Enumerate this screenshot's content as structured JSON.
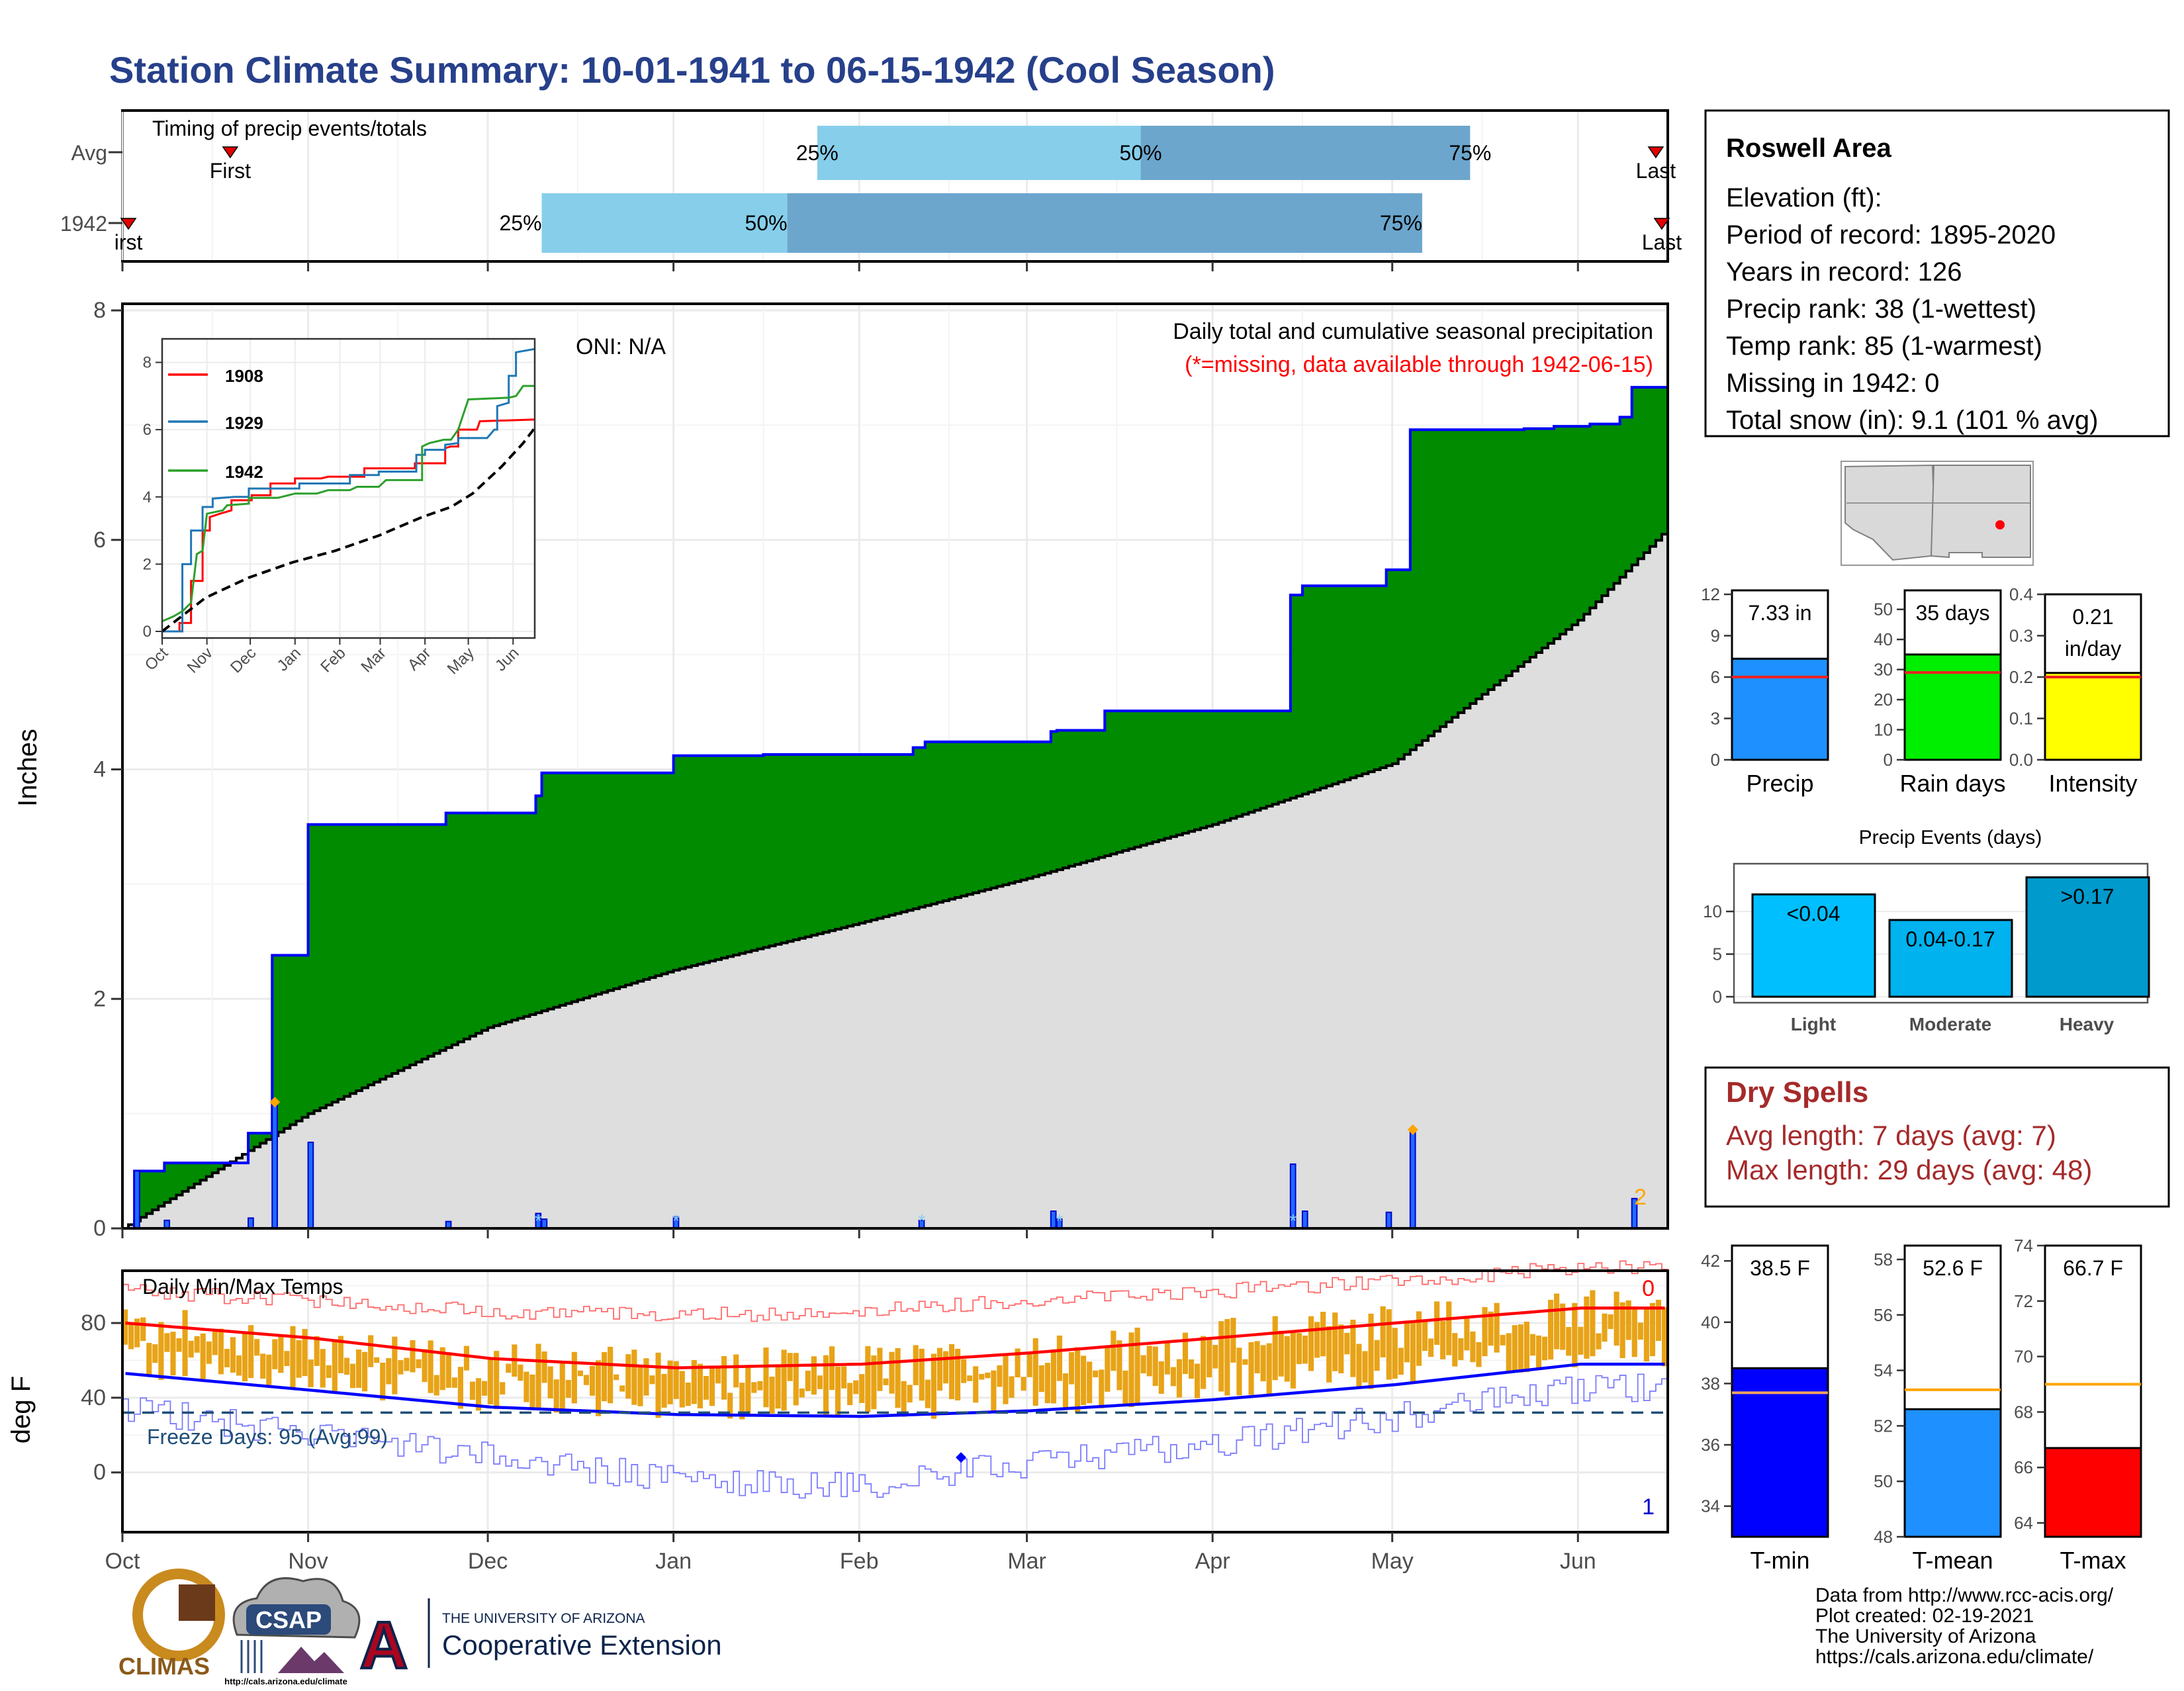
{
  "title": "Station Climate Summary: 10-01-1941 to 06-15-1942 (Cool Season)",
  "timing": {
    "label": "Timing of precip events/totals",
    "rows": [
      {
        "name": "Avg",
        "first_day": 18,
        "last_day": 256,
        "p25_day": 116,
        "p50_day": 170,
        "p75_day": 225,
        "first_label": "First",
        "last_label": "Last"
      },
      {
        "name": "1942",
        "first_day": 1,
        "last_day": 257,
        "p25_day": 70,
        "p50_day": 111,
        "p75_day": 217,
        "first_label": "irst",
        "last_label": "Last"
      }
    ],
    "pct_labels": [
      "25%",
      "50%",
      "75%"
    ]
  },
  "station": {
    "name": "Roswell Area",
    "lines": [
      "Elevation (ft):",
      "Period of record: 1895-2020",
      "Years in record: 126",
      "Precip rank: 38 (1-wettest)",
      "Temp rank: 85 (1-warmest)",
      "Missing in 1942: 0",
      "Total snow (in): 9.1 (101 % avg)"
    ]
  },
  "main_chart": {
    "ylabel": "Inches",
    "annotation_title": "Daily total and cumulative seasonal precipitation",
    "annotation_missing": "(*=missing, data available through 1942-06-15)",
    "oni": "ONI: N/A",
    "corner_count": "2",
    "months": [
      "Oct",
      "Nov",
      "Dec",
      "Jan",
      "Feb",
      "Mar",
      "Apr",
      "May",
      "Jun"
    ],
    "yticks": [
      "0",
      "2",
      "4",
      "6",
      "8"
    ]
  },
  "inset": {
    "yticks": [
      "0",
      "2",
      "4",
      "6",
      "8"
    ],
    "months": [
      "Oct",
      "Nov",
      "Dec",
      "Jan",
      "Feb",
      "Mar",
      "Apr",
      "May",
      "Jun"
    ],
    "legend": [
      "1908",
      "1929",
      "1942"
    ]
  },
  "temp_chart": {
    "title": "Daily Min/Max Temps",
    "ylabel": "deg F",
    "yticks": [
      "0",
      "40",
      "80"
    ],
    "freeze_label": "Freeze Days: 95 (Avg:99)",
    "count_top": "0",
    "count_bottom": "1"
  },
  "precip_bars": [
    {
      "label": "Precip",
      "value_label": "7.33 in",
      "yticks": [
        "0",
        "3",
        "6",
        "9",
        "12"
      ]
    },
    {
      "label": "Rain days",
      "value_label": "35 days",
      "yticks": [
        "0",
        "10",
        "20",
        "30",
        "40",
        "50"
      ]
    },
    {
      "label": "Intensity",
      "value_label": "0.21\nin/day",
      "yticks": [
        "0.0",
        "0.1",
        "0.2",
        "0.3",
        "0.4"
      ]
    }
  ],
  "events": {
    "title": "Precip Events (days)",
    "categories": [
      "Light",
      "Moderate",
      "Heavy"
    ],
    "bar_labels": [
      "<0.04",
      "0.04-0.17",
      ">0.17"
    ],
    "yticks": [
      "0",
      "5",
      "10"
    ]
  },
  "dry": {
    "title": "Dry Spells",
    "avg_line": "Avg length: 7 days (avg: 7)",
    "max_line": "Max length: 29 days (avg: 48)"
  },
  "temp_bars": [
    {
      "label": "T-min",
      "value_label": "38.5 F",
      "yticks": [
        "34",
        "36",
        "38",
        "40",
        "42"
      ]
    },
    {
      "label": "T-mean",
      "value_label": "52.6 F",
      "yticks": [
        "48",
        "50",
        "52",
        "54",
        "56",
        "58"
      ]
    },
    {
      "label": "T-max",
      "value_label": "66.7 F",
      "yticks": [
        "64",
        "66",
        "68",
        "70",
        "72",
        "74"
      ]
    }
  ],
  "credits": [
    "Data from http://www.rcc-acis.org/",
    "Plot created: 02-19-2021",
    "The University of Arizona",
    "https://cals.arizona.edu/climate/"
  ],
  "logos": {
    "climas": "CLIMAS",
    "csap": "CSAP",
    "csap_url": "http://cals.arizona.edu/climate",
    "ua_small": "THE UNIVERSITY OF ARIZONA",
    "ua_big": "Cooperative Extension",
    "ua_letter": "A"
  },
  "chart_data": [
    {
      "type": "area",
      "title": "Daily total and cumulative seasonal precipitation",
      "ylabel": "Inches",
      "ylim": [
        0,
        8
      ],
      "x_range": [
        "1941-10-01",
        "1942-06-15"
      ],
      "series": [
        {
          "name": "1942",
          "x": [
            "10-03",
            "10-08",
            "10-22",
            "10-26",
            "11-01",
            "11-24",
            "12-09",
            "12-10",
            "01-01",
            "01-16",
            "02-10",
            "02-12",
            "03-05",
            "03-06",
            "03-14",
            "03-25",
            "04-14",
            "04-16",
            "04-30",
            "05-04",
            "05-23",
            "05-28",
            "06-03",
            "06-08",
            "06-10",
            "06-15"
          ],
          "values": [
            0.5,
            0.57,
            0.83,
            2.38,
            3.52,
            3.62,
            3.77,
            3.97,
            4.12,
            4.13,
            4.19,
            4.24,
            4.33,
            4.34,
            4.51,
            4.51,
            5.52,
            5.6,
            5.74,
            6.96,
            6.97,
            6.99,
            7.01,
            7.07,
            7.33,
            7.33
          ]
        },
        {
          "name": "",
          "x": [
            "10-01",
            "11-01",
            "12-01",
            "01-01",
            "02-01",
            "03-01",
            "04-01",
            "05-01",
            "06-01",
            "06-15"
          ],
          "values": [
            0.0,
            1.0,
            1.75,
            2.25,
            2.66,
            3.05,
            3.52,
            4.05,
            5.3,
            6.05
          ]
        }
      ],
      "daily_precip": {
        "dates": [
          "10-03",
          "10-08",
          "10-22",
          "10-26",
          "11-01",
          "11-24",
          "12-09",
          "12-10",
          "01-01",
          "02-11",
          "03-05",
          "03-06",
          "04-14",
          "04-16",
          "04-30",
          "05-04",
          "06-10"
        ],
        "values": [
          0.5,
          0.07,
          0.09,
          1.1,
          0.75,
          0.06,
          0.13,
          0.08,
          0.1,
          0.07,
          0.15,
          0.08,
          0.56,
          0.15,
          0.14,
          0.86,
          0.26
        ]
      }
    },
    {
      "type": "line",
      "title": "",
      "x": [
        "Oct",
        "Nov",
        "Dec",
        "Jan",
        "Feb",
        "Mar",
        "Apr",
        "May",
        "Jun"
      ],
      "series": [
        {
          "name": "1908",
          "values": [
            0.0,
            4.0,
            4.2,
            4.3,
            4.5,
            4.7,
            4.9,
            5.6,
            6.6
          ]
        },
        {
          "name": "1929",
          "values": [
            0.0,
            3.9,
            4.0,
            4.2,
            4.4,
            4.6,
            4.8,
            6.6,
            8.3
          ]
        },
        {
          "name": "1942",
          "values": [
            0.3,
            3.6,
            3.8,
            4.0,
            4.2,
            4.3,
            4.5,
            6.9,
            7.3
          ]
        },
        {
          "name": "",
          "values": [
            0.0,
            1.0,
            1.75,
            2.25,
            2.66,
            3.05,
            3.52,
            4.05,
            5.9
          ]
        }
      ],
      "ylim": [
        0,
        8
      ]
    },
    {
      "type": "line",
      "title": "Daily Min/Max Temps",
      "ylabel": "deg F",
      "x": [
        "Oct",
        "Nov",
        "Dec",
        "Jan",
        "Feb",
        "Mar",
        "Apr",
        "May",
        "Jun"
      ],
      "series": [
        {
          "name": "",
          "values": [
            80,
            72,
            61,
            56,
            58,
            64,
            72,
            80,
            88
          ]
        },
        {
          "name": "",
          "values": [
            53,
            44,
            35,
            31,
            30,
            33,
            39,
            47,
            58
          ]
        },
        {
          "name": "",
          "values": [
            97,
            92,
            86,
            84,
            86,
            92,
            97,
            102,
            110
          ]
        },
        {
          "name": "",
          "values": [
            35,
            20,
            8,
            -4,
            -8,
            5,
            15,
            30,
            45
          ]
        }
      ],
      "freeze_line": 32,
      "ylim": [
        -30,
        110
      ]
    },
    {
      "type": "bar",
      "categories": [
        "Precip"
      ],
      "values": [
        7.33
      ],
      "avg": 6.0,
      "ylim": [
        0,
        12
      ]
    },
    {
      "type": "bar",
      "categories": [
        "Rain days"
      ],
      "values": [
        35
      ],
      "avg": 29,
      "ylim": [
        0,
        55
      ]
    },
    {
      "type": "bar",
      "categories": [
        "Intensity"
      ],
      "values": [
        0.21
      ],
      "avg": 0.2,
      "ylim": [
        0,
        0.4
      ]
    },
    {
      "type": "bar",
      "title": "Precip Events (days)",
      "categories": [
        "Light",
        "Moderate",
        "Heavy"
      ],
      "values": [
        12,
        9,
        14
      ],
      "ylim": [
        0,
        15
      ]
    },
    {
      "type": "bar",
      "categories": [
        "T-min"
      ],
      "values": [
        38.5
      ],
      "avg": 37.7,
      "ylim": [
        33,
        42.5
      ]
    },
    {
      "type": "bar",
      "categories": [
        "T-mean"
      ],
      "values": [
        52.6
      ],
      "avg": 53.3,
      "ylim": [
        48,
        58.5
      ]
    },
    {
      "type": "bar",
      "categories": [
        "T-max"
      ],
      "values": [
        66.7
      ],
      "avg": 69.0,
      "ylim": [
        63.5,
        74
      ]
    }
  ]
}
